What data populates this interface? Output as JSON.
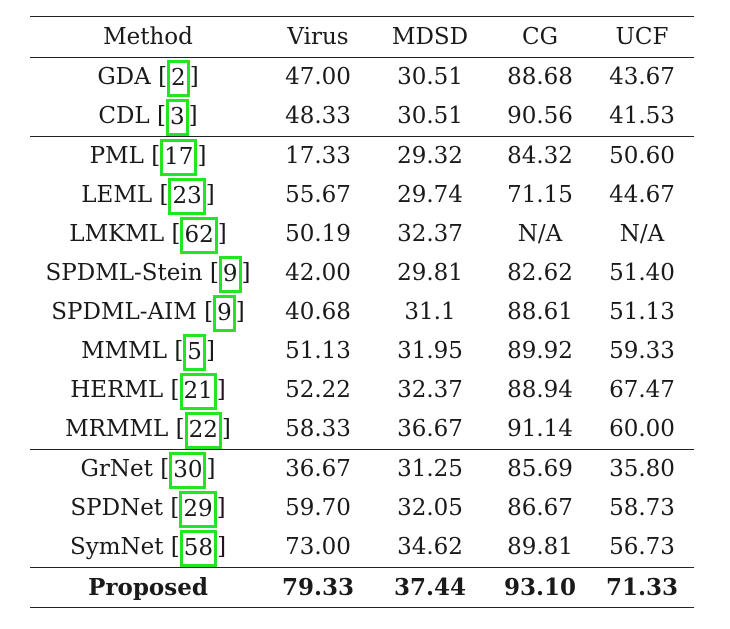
{
  "header": {
    "method": "Method",
    "virus": "Virus",
    "mdsd": "MDSD",
    "cg": "CG",
    "ucf": "UCF"
  },
  "rows": [
    {
      "name": "GDA",
      "ref": "2",
      "virus": "47.00",
      "mdsd": "30.51",
      "cg": "88.68",
      "ucf": "43.67"
    },
    {
      "name": "CDL",
      "ref": "3",
      "virus": "48.33",
      "mdsd": "30.51",
      "cg": "90.56",
      "ucf": "41.53"
    },
    {
      "name": "PML",
      "ref": "17",
      "virus": "17.33",
      "mdsd": "29.32",
      "cg": "84.32",
      "ucf": "50.60"
    },
    {
      "name": "LEML",
      "ref": "23",
      "virus": "55.67",
      "mdsd": "29.74",
      "cg": "71.15",
      "ucf": "44.67"
    },
    {
      "name": "LMKML",
      "ref": "62",
      "virus": "50.19",
      "mdsd": "32.37",
      "cg": "N/A",
      "ucf": "N/A"
    },
    {
      "name": "SPDML-Stein",
      "ref": "9",
      "virus": "42.00",
      "mdsd": "29.81",
      "cg": "82.62",
      "ucf": "51.40"
    },
    {
      "name": "SPDML-AIM",
      "ref": "9",
      "virus": "40.68",
      "mdsd": "31.1",
      "cg": "88.61",
      "ucf": "51.13"
    },
    {
      "name": "MMML",
      "ref": "5",
      "virus": "51.13",
      "mdsd": "31.95",
      "cg": "89.92",
      "ucf": "59.33"
    },
    {
      "name": "HERML",
      "ref": "21",
      "virus": "52.22",
      "mdsd": "32.37",
      "cg": "88.94",
      "ucf": "67.47"
    },
    {
      "name": "MRMML",
      "ref": "22",
      "virus": "58.33",
      "mdsd": "36.67",
      "cg": "91.14",
      "ucf": "60.00"
    },
    {
      "name": "GrNet",
      "ref": "30",
      "virus": "36.67",
      "mdsd": "31.25",
      "cg": "85.69",
      "ucf": "35.80"
    },
    {
      "name": "SPDNet",
      "ref": "29",
      "virus": "59.70",
      "mdsd": "32.05",
      "cg": "86.67",
      "ucf": "58.73"
    },
    {
      "name": "SymNet",
      "ref": "58",
      "virus": "73.00",
      "mdsd": "34.62",
      "cg": "89.81",
      "ucf": "56.73"
    }
  ],
  "proposed": {
    "name": "Proposed",
    "virus": "79.33",
    "mdsd": "37.44",
    "cg": "93.10",
    "ucf": "71.33"
  },
  "colors": {
    "highlight_box": "#22e622",
    "text": "#1a1a1a",
    "rule": "#222222"
  }
}
